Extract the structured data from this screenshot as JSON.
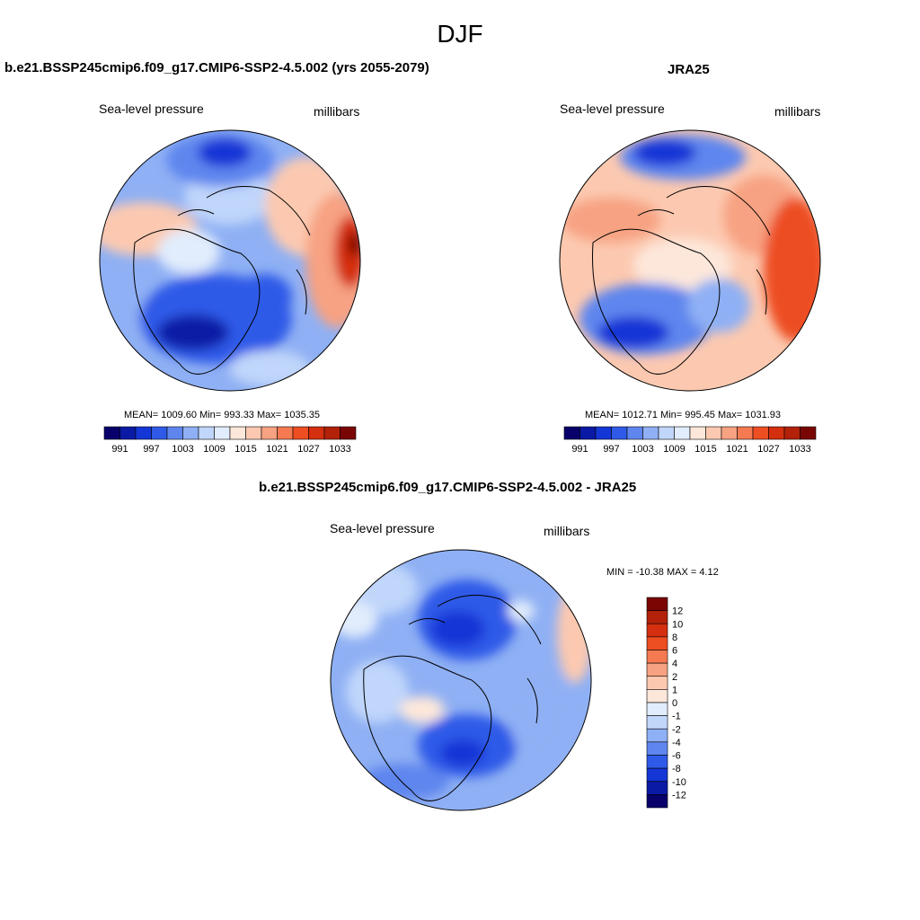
{
  "season": "DJF",
  "panels": [
    {
      "id": "model",
      "title": "b.e21.BSSP245cmip6.f09_g17.CMIP6-SSP2-4.5.002 (yrs 2055-2079)",
      "left_label": "Sea-level pressure",
      "right_label": "millibars",
      "stats": "MEAN= 1009.60  Min= 993.33  Max= 1035.35"
    },
    {
      "id": "obs",
      "title": "JRA25",
      "left_label": "Sea-level pressure",
      "right_label": "millibars",
      "stats": "MEAN= 1012.71  Min= 995.45  Max= 1031.93"
    },
    {
      "id": "diff",
      "title": "b.e21.BSSP245cmip6.f09_g17.CMIP6-SSP2-4.5.002 - JRA25",
      "left_label": "Sea-level pressure",
      "right_label": "millibars",
      "stats": "MIN = -10.38 MAX =   4.12"
    }
  ],
  "abs_colorbar": {
    "colors": [
      "#08006b",
      "#0a1aa5",
      "#1436d6",
      "#2f5ae8",
      "#5f86ee",
      "#8fb0f4",
      "#c0d6fa",
      "#e1ecfc",
      "#fde7da",
      "#fcc9b0",
      "#f7a282",
      "#f57a51",
      "#ed4e22",
      "#d42f0e",
      "#b32109",
      "#7a0604"
    ],
    "ticks": [
      "991",
      "997",
      "1003",
      "1009",
      "1015",
      "1021",
      "1027",
      "1033"
    ]
  },
  "diff_colorbar": {
    "colors": [
      "#08006b",
      "#0a1aa5",
      "#1436d6",
      "#2f5ae8",
      "#5f86ee",
      "#8fb0f4",
      "#c0d6fa",
      "#e1ecfc",
      "#fde7da",
      "#fcc9b0",
      "#f7a282",
      "#f57a51",
      "#ed4e22",
      "#d42f0e",
      "#b32109",
      "#7a0604"
    ],
    "ticks": [
      "12",
      "10",
      "8",
      "6",
      "4",
      "2",
      "1",
      "0",
      "-1",
      "-2",
      "-4",
      "-6",
      "-8",
      "-10",
      "-12"
    ]
  }
}
